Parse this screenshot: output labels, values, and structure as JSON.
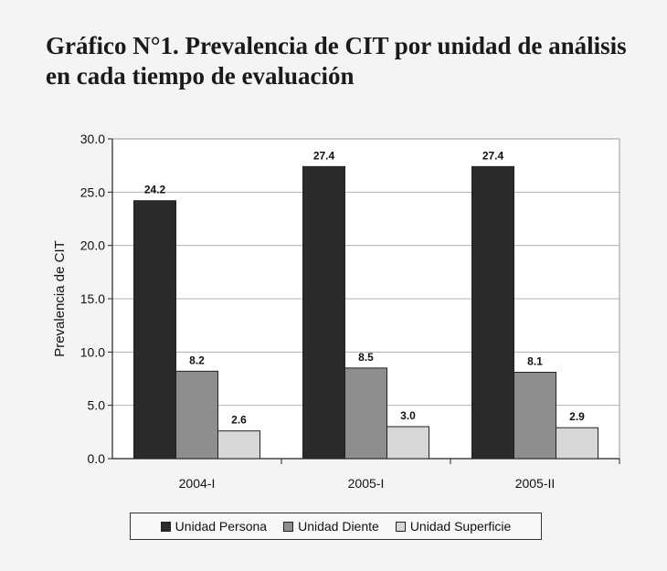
{
  "title_line1": "Gráfico N°1. Prevalencia de CIT por unidad de análisis",
  "title_line2": "en cada tiempo de evaluación",
  "chart_data": {
    "type": "bar",
    "title": "Gráfico N°1. Prevalencia de CIT por unidad de análisis en cada tiempo de evaluación",
    "ylabel": "Prevalencia de CIT",
    "xlabel": "",
    "ylim": [
      0,
      30
    ],
    "yticks": [
      "0.0",
      "5.0",
      "10.0",
      "15.0",
      "20.0",
      "25.0",
      "30.0"
    ],
    "categories": [
      "2004-I",
      "2005-I",
      "2005-II"
    ],
    "series": [
      {
        "name": "Unidad Persona",
        "color": "#2b2b2b",
        "values": [
          24.2,
          27.4,
          27.4
        ],
        "labels": [
          "24.2",
          "27.4",
          "27.4"
        ]
      },
      {
        "name": "Unidad Diente",
        "color": "#8e8e8e",
        "values": [
          8.2,
          8.5,
          8.1
        ],
        "labels": [
          "8.2",
          "8.5",
          "8.1"
        ]
      },
      {
        "name": "Unidad Superficie",
        "color": "#d7d7d7",
        "values": [
          2.6,
          3.0,
          2.9
        ],
        "labels": [
          "2.6",
          "3.0",
          "2.9"
        ]
      }
    ],
    "grid": true,
    "legend_position": "bottom"
  }
}
